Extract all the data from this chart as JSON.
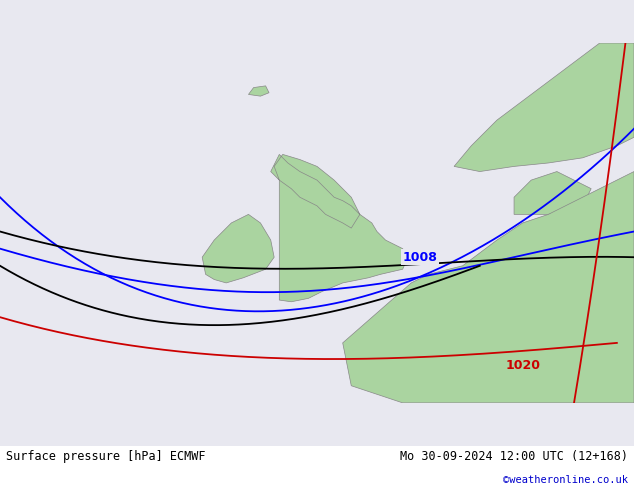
{
  "title_left": "Surface pressure [hPa] ECMWF",
  "title_right": "Mo 30-09-2024 12:00 UTC (12+168)",
  "credit": "©weatheronline.co.uk",
  "bg_color": "#e8e8f0",
  "land_color": "#aad4a0",
  "land_border_color": "#888888",
  "isobar_blue_color": "#0000ff",
  "isobar_1008_label": "1008",
  "isobar_black_color": "#000000",
  "isobar_red_color": "#cc0000",
  "isobar_1020_label": "1020",
  "font_color_bottom": "#000000",
  "credit_color": "#0000cc",
  "bottom_bar_color": "#ffffff"
}
